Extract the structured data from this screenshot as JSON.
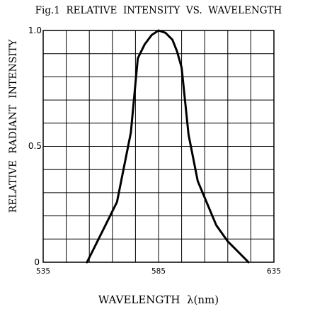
{
  "chart_data": {
    "type": "line",
    "title": "Fig.1  RELATIVE  INTENSITY  VS.  WAVELENGTH",
    "xlabel": "WAVELENGTH  λ(nm)",
    "ylabel": "RELATIVE  RADIANT  INTENSITY",
    "xlim": [
      535,
      635
    ],
    "ylim": [
      0,
      1.0
    ],
    "x_tick_labels": [
      "535",
      "585",
      "635"
    ],
    "y_tick_labels": [
      "0",
      "0.5",
      "1.0"
    ],
    "grid": true,
    "series": [
      {
        "color": "#000000",
        "x": [
          554,
          560,
          567,
          573,
          576,
          579,
          582,
          585,
          588,
          591,
          593,
          595,
          598,
          602,
          610,
          615,
          620,
          624
        ],
        "y": [
          0.0,
          0.12,
          0.26,
          0.56,
          0.88,
          0.94,
          0.98,
          1.0,
          0.99,
          0.96,
          0.91,
          0.84,
          0.55,
          0.35,
          0.16,
          0.09,
          0.04,
          0.0
        ]
      }
    ]
  }
}
